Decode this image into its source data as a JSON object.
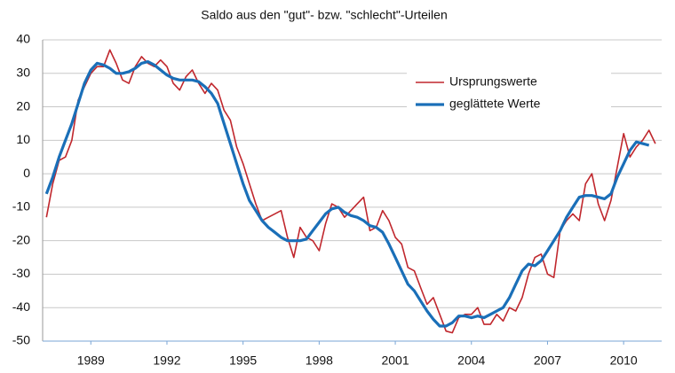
{
  "chart_data": {
    "type": "line",
    "title": "Saldo aus den \"gut\"- bzw. \"schlecht\"-Urteilen",
    "x": [
      1987.75,
      1988,
      1988.25,
      1988.5,
      1988.75,
      1989,
      1989.25,
      1989.5,
      1989.75,
      1990,
      1990.25,
      1990.5,
      1990.75,
      1991,
      1991.25,
      1991.5,
      1991.75,
      1992,
      1992.25,
      1992.5,
      1992.75,
      1993,
      1993.25,
      1993.5,
      1993.75,
      1994,
      1994.25,
      1994.5,
      1994.75,
      1995,
      1995.25,
      1995.5,
      1995.75,
      1996,
      1996.25,
      1996.5,
      1996.75,
      1997,
      1997.25,
      1997.5,
      1997.75,
      1998,
      1998.25,
      1998.5,
      1998.75,
      1999,
      1999.25,
      1999.5,
      1999.75,
      2000,
      2000.25,
      2000.5,
      2000.75,
      2001,
      2001.25,
      2001.5,
      2001.75,
      2002,
      2002.25,
      2002.5,
      2002.75,
      2003,
      2003.25,
      2003.5,
      2003.75,
      2004,
      2004.25,
      2004.5,
      2004.75,
      2005,
      2005.25,
      2005.5,
      2005.75,
      2006,
      2006.25,
      2006.5,
      2006.75,
      2007,
      2007.25,
      2007.5,
      2007.75,
      2008,
      2008.25,
      2008.5,
      2008.75,
      2009,
      2009.25,
      2009.5,
      2009.75,
      2010,
      2010.25,
      2010.5,
      2010.75,
      2011,
      2011.25,
      2011.5,
      2011.75
    ],
    "series": [
      {
        "name": "Ursprungswerte",
        "color": "#c0272d",
        "width": 1.6,
        "values": [
          -13,
          -3,
          4,
          5,
          10,
          22,
          26,
          30,
          32,
          32,
          37,
          33,
          28,
          27,
          32,
          35,
          33,
          32,
          34,
          32,
          27,
          25,
          29,
          31,
          27,
          24,
          27,
          25,
          19,
          16,
          8,
          3,
          -3,
          -9,
          -14,
          -13,
          -12,
          -11,
          -19,
          -25,
          -16,
          -19,
          -20,
          -23,
          -15,
          -9,
          -10,
          -13,
          -11,
          -9,
          -7,
          -17,
          -16,
          -11,
          -14,
          -19,
          -21,
          -28,
          -29,
          -34,
          -39,
          -37,
          -42,
          -47,
          -47.5,
          -43,
          -42,
          -42,
          -40,
          -45,
          -45,
          -42,
          -44,
          -40,
          -41,
          -37,
          -30,
          -25,
          -24,
          -30,
          -31,
          -17,
          -14,
          -12,
          -14,
          -3,
          0,
          -9,
          -14,
          -8,
          2,
          12,
          5,
          8,
          10,
          13,
          9
        ]
      },
      {
        "name": "geglättete Werte",
        "color": "#1a6fb8",
        "width": 3.2,
        "values": [
          -6,
          -1,
          5,
          10,
          15,
          21,
          27,
          31,
          33,
          32.5,
          31.5,
          30,
          30,
          30.5,
          31.5,
          33,
          33.5,
          32.5,
          31,
          29.5,
          28.5,
          28,
          28,
          28,
          27.5,
          26,
          24,
          21,
          15,
          9,
          3,
          -3,
          -8,
          -11,
          -14,
          -16,
          -17.5,
          -19,
          -20,
          -20,
          -20,
          -19.5,
          -17,
          -14.5,
          -12,
          -10.5,
          -10,
          -11.5,
          -12.5,
          -13,
          -14,
          -15.5,
          -16,
          -17.5,
          -21,
          -25,
          -29,
          -33,
          -35,
          -38,
          -41,
          -43.5,
          -45.5,
          -45.5,
          -44.5,
          -42.5,
          -42.5,
          -43,
          -42.5,
          -43,
          -42,
          -41,
          -40,
          -37,
          -33,
          -29,
          -27,
          -27.5,
          -26,
          -23,
          -20,
          -17,
          -13,
          -10,
          -7,
          -6.5,
          -6.5,
          -7,
          -7.5,
          -6,
          -1,
          3,
          7,
          9.5,
          9,
          8.5,
          null
        ]
      }
    ],
    "xlim": [
      1987.6,
      2012.0
    ],
    "xticks": [
      {
        "value": 1989.5,
        "label": "1989"
      },
      {
        "value": 1992.5,
        "label": "1992"
      },
      {
        "value": 1995.5,
        "label": "1995"
      },
      {
        "value": 1998.5,
        "label": "1998"
      },
      {
        "value": 2001.5,
        "label": "2001"
      },
      {
        "value": 2004.5,
        "label": "2004"
      },
      {
        "value": 2007.5,
        "label": "2007"
      },
      {
        "value": 2010.5,
        "label": "2010"
      }
    ],
    "ylim": [
      -50,
      40
    ],
    "yticks": [
      -50,
      -40,
      -30,
      -20,
      -10,
      0,
      10,
      20,
      30,
      40
    ],
    "grid": true
  }
}
